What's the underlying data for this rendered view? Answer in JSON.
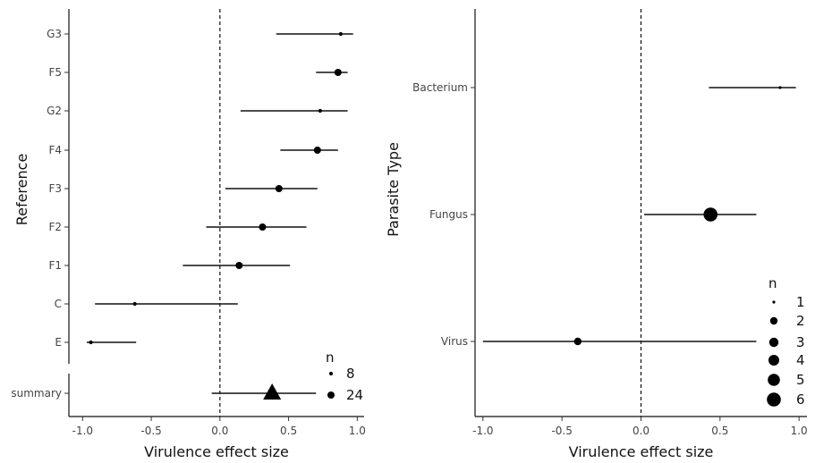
{
  "chart_data": [
    {
      "type": "scatter",
      "subtype": "forest-plot",
      "xlabel": "Virulence effect size",
      "ylabel": "Reference",
      "xlim": [
        -1.1,
        1.05
      ],
      "xticks": [
        -1.0,
        -0.5,
        0.0,
        0.5,
        1.0
      ],
      "xtick_labels": [
        "-1.0",
        "-0.5",
        "0.0",
        "0.5",
        "1.0"
      ],
      "reference_line_x": 0,
      "grid": false,
      "categories": [
        "G3",
        "F5",
        "G2",
        "F4",
        "F3",
        "F2",
        "F1",
        "C",
        "E"
      ],
      "estimates": [
        0.88,
        0.86,
        0.73,
        0.71,
        0.43,
        0.31,
        0.14,
        -0.62,
        -0.94
      ],
      "ci_lower": [
        0.41,
        0.7,
        0.15,
        0.44,
        0.04,
        -0.1,
        -0.27,
        -0.91,
        -0.97
      ],
      "ci_upper": [
        0.97,
        0.93,
        0.93,
        0.86,
        0.71,
        0.63,
        0.51,
        0.13,
        -0.61
      ],
      "n": [
        8,
        24,
        8,
        24,
        24,
        24,
        24,
        8,
        8
      ],
      "summary": {
        "label": "summary",
        "estimate": 0.38,
        "ci_lower": -0.06,
        "ci_upper": 0.7
      },
      "legend": {
        "title": "n",
        "entries": [
          8,
          24
        ],
        "position": "bottom-right"
      }
    },
    {
      "type": "scatter",
      "subtype": "forest-plot",
      "xlabel": "Virulence effect size",
      "ylabel": "Parasite Type",
      "xlim": [
        -1.05,
        1.05
      ],
      "xticks": [
        -1.0,
        -0.5,
        0.0,
        0.5,
        1.0
      ],
      "xtick_labels": [
        "-1.0",
        "-0.5",
        "0.0",
        "0.5",
        "1.0"
      ],
      "reference_line_x": 0,
      "grid": false,
      "categories": [
        "Bacterium",
        "Fungus",
        "Virus"
      ],
      "estimates": [
        0.88,
        0.44,
        -0.4
      ],
      "ci_lower": [
        0.43,
        0.02,
        -1.0
      ],
      "ci_upper": [
        0.98,
        0.73,
        0.73
      ],
      "n": [
        1,
        6,
        2
      ],
      "legend": {
        "title": "n",
        "entries": [
          1,
          2,
          3,
          4,
          5,
          6
        ],
        "position": "bottom-right"
      }
    }
  ]
}
